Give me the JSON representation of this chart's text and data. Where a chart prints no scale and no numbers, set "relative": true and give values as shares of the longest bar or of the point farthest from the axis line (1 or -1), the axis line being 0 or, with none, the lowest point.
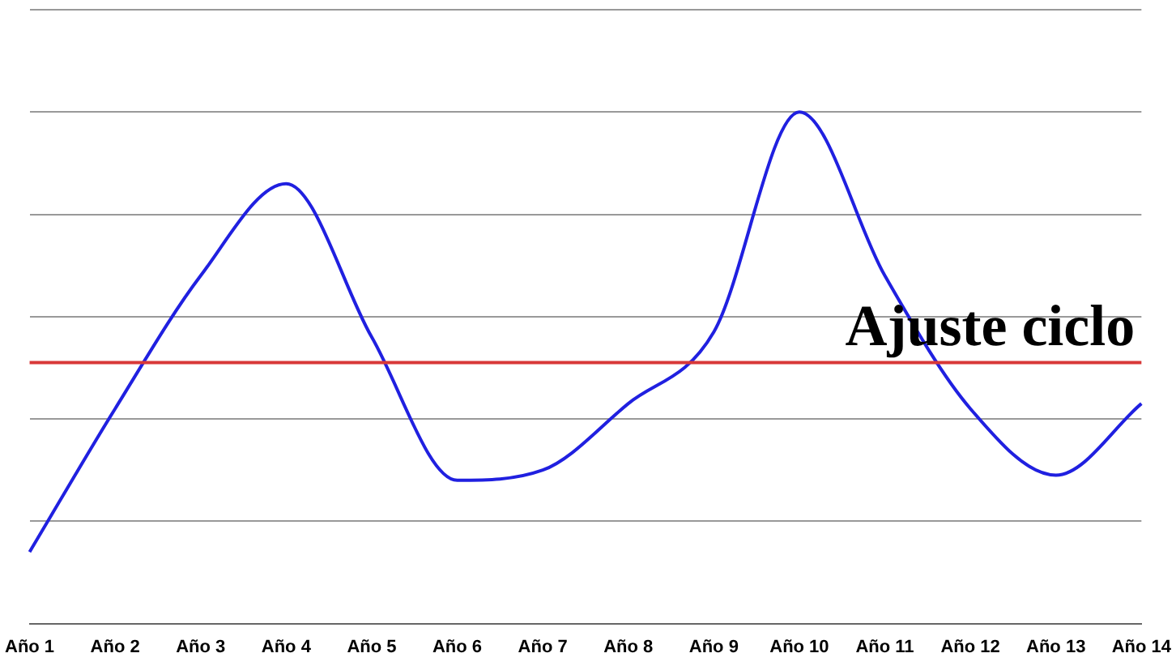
{
  "chart_data": {
    "type": "line",
    "relative": true,
    "categories": [
      "Año 1",
      "Año 2",
      "Año 3",
      "Año 4",
      "Año 5",
      "Año 6",
      "Año 7",
      "Año 8",
      "Año 9",
      "Año 10",
      "Año 11",
      "Año 12",
      "Año 13",
      "Año 14"
    ],
    "series": [
      {
        "color": "#2020e0",
        "values": [
          0.14,
          0.42,
          0.68,
          0.86,
          0.56,
          0.28,
          0.3,
          0.43,
          0.57,
          1,
          0.68,
          0.42,
          0.29,
          0.43
        ]
      }
    ],
    "ref_lines": [
      {
        "axis": "y",
        "value": 0.51,
        "label": "Ajuste ciclo",
        "color": "#d83838"
      }
    ],
    "grid": "y",
    "legend": false,
    "marker": "none",
    "line_style": "solid"
  }
}
